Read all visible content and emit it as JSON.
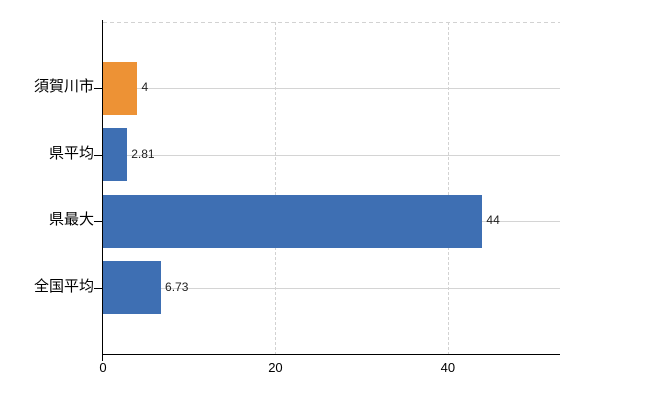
{
  "chart_data": {
    "type": "bar",
    "orientation": "horizontal",
    "title": "",
    "xlabel": "",
    "ylabel": "",
    "categories": [
      "須賀川市",
      "県平均",
      "県最大",
      "全国平均"
    ],
    "values": [
      4,
      2.81,
      44,
      6.73
    ],
    "value_labels": [
      "4",
      "2.81",
      "44",
      "6.73"
    ],
    "bar_colors": [
      "#ED9235",
      "#3E6FB3",
      "#3E6FB3",
      "#3E6FB3"
    ],
    "x_ticks": [
      0,
      20,
      40
    ],
    "x_tick_labels": [
      "0",
      "20",
      "40"
    ],
    "xlim": [
      0,
      53
    ],
    "grid": "on",
    "legend": "none"
  },
  "colors": {
    "highlight_bar": "#ED9235",
    "default_bar": "#3E6FB3",
    "gridline": "#d4d4d4",
    "axis": "#000000",
    "background": "#ffffff"
  }
}
